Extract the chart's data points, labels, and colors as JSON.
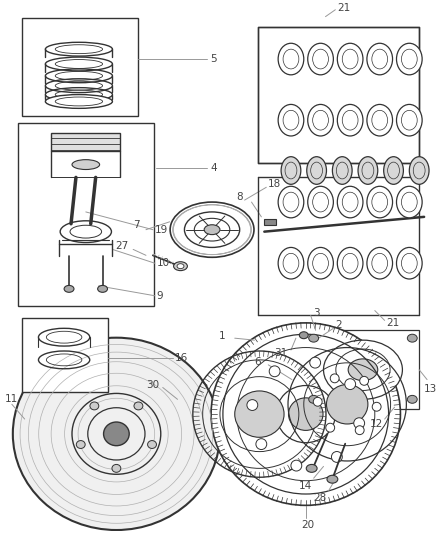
{
  "bg_color": "#ffffff",
  "line_color": "#333333",
  "label_color": "#444444",
  "label_fontsize": 7.5,
  "gray_line": "#999999",
  "light_gray": "#bbbbbb",
  "mid_gray": "#888888",
  "dark_gray": "#555555"
}
